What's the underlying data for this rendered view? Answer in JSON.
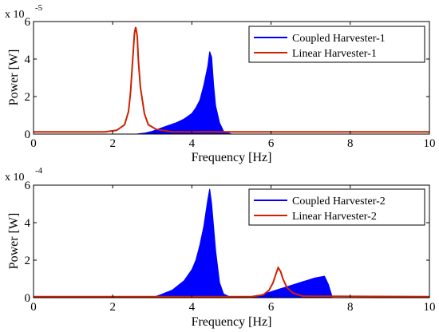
{
  "chart_data": [
    {
      "type": "area",
      "xlabel": "Frequency [Hz]",
      "ylabel": "Power [W]",
      "y_multiplier_label": {
        "base": "x 10",
        "exponent": "-5"
      },
      "xlim": [
        0,
        10
      ],
      "ylim": [
        0,
        6
      ],
      "x_ticks": [
        "0",
        "2",
        "4",
        "6",
        "8",
        "10"
      ],
      "y_ticks": [
        "0",
        "2",
        "4",
        "6"
      ],
      "grid": false,
      "legend": "top-right",
      "colors": {
        "coupled": "#0000ff",
        "linear": "#cc2200"
      },
      "series": [
        {
          "name": "Coupled Harvester-1",
          "style": "filled-area",
          "x": [
            0,
            2.6,
            2.8,
            3.0,
            3.2,
            3.4,
            3.6,
            3.8,
            4.0,
            4.1,
            4.2,
            4.3,
            4.4,
            4.45,
            4.5,
            4.55,
            4.6,
            4.7,
            4.8,
            5.0,
            10
          ],
          "y": [
            0,
            0,
            0.05,
            0.15,
            0.3,
            0.45,
            0.6,
            0.8,
            1.1,
            1.4,
            1.8,
            2.6,
            3.6,
            4.4,
            4.1,
            2.6,
            1.5,
            0.6,
            0.15,
            0,
            0
          ]
        },
        {
          "name": "Linear Harvester-1",
          "style": "line",
          "x": [
            0,
            1.8,
            2.1,
            2.3,
            2.4,
            2.45,
            2.5,
            2.55,
            2.58,
            2.62,
            2.65,
            2.7,
            2.8,
            2.9,
            3.1,
            3.5,
            10
          ],
          "y": [
            0.12,
            0.12,
            0.2,
            0.5,
            1.2,
            2.2,
            3.8,
            5.4,
            5.7,
            5.2,
            3.9,
            2.5,
            1.1,
            0.5,
            0.25,
            0.12,
            0.12
          ]
        }
      ]
    },
    {
      "type": "area",
      "xlabel": "Frequency [Hz]",
      "ylabel": "Power [W]",
      "y_multiplier_label": {
        "base": "x 10",
        "exponent": "-4"
      },
      "xlim": [
        0,
        10
      ],
      "ylim": [
        0,
        6
      ],
      "x_ticks": [
        "0",
        "2",
        "4",
        "6",
        "8",
        "10"
      ],
      "y_ticks": [
        "0",
        "2",
        "4",
        "6"
      ],
      "grid": false,
      "legend": "top-right",
      "colors": {
        "coupled": "#0000ff",
        "linear": "#cc2200"
      },
      "series": [
        {
          "name": "Coupled Harvester-2",
          "style": "filled-area",
          "x": [
            0,
            3.0,
            3.2,
            3.5,
            3.8,
            4.0,
            4.1,
            4.2,
            4.3,
            4.4,
            4.45,
            4.5,
            4.6,
            4.7,
            4.8,
            5.0,
            5.2,
            5.6,
            5.9,
            6.2,
            6.5,
            6.8,
            7.1,
            7.35,
            7.45,
            7.55,
            10
          ],
          "y": [
            0,
            0,
            0.15,
            0.4,
            0.9,
            1.5,
            2.0,
            2.8,
            3.8,
            5.2,
            5.8,
            5.0,
            2.5,
            0.8,
            0.2,
            0,
            0,
            0.05,
            0.25,
            0.45,
            0.65,
            0.85,
            1.05,
            1.15,
            0.7,
            0,
            0
          ]
        },
        {
          "name": "Linear Harvester-2",
          "style": "line",
          "x": [
            0,
            5.5,
            5.8,
            5.95,
            6.05,
            6.12,
            6.18,
            6.24,
            6.3,
            6.4,
            6.55,
            6.8,
            10
          ],
          "y": [
            0.05,
            0.05,
            0.15,
            0.4,
            0.8,
            1.25,
            1.6,
            1.4,
            1.0,
            0.55,
            0.25,
            0.08,
            0.05
          ]
        }
      ]
    }
  ]
}
